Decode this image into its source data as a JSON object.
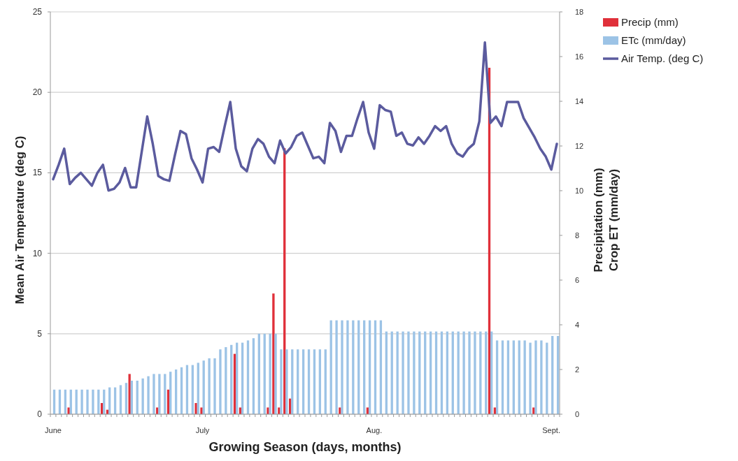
{
  "chart_data": {
    "type": "bar",
    "xlabel": "Growing Season (days, months)",
    "ylabel": "Mean Air Temperature (deg C)",
    "y2label": "Precipitation (mm)\nCrop ET (mm/day)",
    "categories": [
      "June",
      null,
      null,
      null,
      null,
      null,
      null,
      null,
      null,
      null,
      null,
      null,
      null,
      null,
      null,
      null,
      null,
      null,
      null,
      null,
      null,
      null,
      null,
      null,
      null,
      null,
      null,
      "July",
      null,
      null,
      null,
      null,
      null,
      null,
      null,
      null,
      null,
      null,
      null,
      null,
      null,
      null,
      null,
      null,
      null,
      null,
      null,
      null,
      null,
      null,
      null,
      null,
      null,
      null,
      null,
      null,
      null,
      null,
      "Aug.",
      null,
      null,
      null,
      null,
      null,
      null,
      null,
      null,
      null,
      null,
      null,
      null,
      null,
      null,
      null,
      null,
      null,
      null,
      null,
      null,
      null,
      null,
      null,
      null,
      null,
      null,
      null,
      null,
      null,
      null,
      null,
      "Sept.",
      null
    ],
    "series": [
      {
        "name": "Precip (mm)",
        "axis": "y2",
        "color": "#e0303a",
        "values": [
          null,
          null,
          null,
          0.3,
          null,
          null,
          null,
          null,
          null,
          0.5,
          0.2,
          null,
          null,
          null,
          1.8,
          null,
          null,
          null,
          null,
          0.3,
          null,
          1.1,
          null,
          null,
          null,
          null,
          0.5,
          0.3,
          null,
          null,
          null,
          null,
          null,
          2.7,
          0.3,
          null,
          null,
          null,
          null,
          0.3,
          5.4,
          0.3,
          11.9,
          0.7,
          null,
          null,
          null,
          null,
          null,
          null,
          null,
          null,
          0.3,
          null,
          null,
          null,
          null,
          0.3,
          null,
          null,
          null,
          null,
          null,
          null,
          null,
          null,
          null,
          null,
          null,
          null,
          null,
          null,
          null,
          null,
          null,
          null,
          null,
          null,
          null,
          15.5,
          0.3,
          null,
          null,
          null,
          null,
          null,
          null,
          0.3,
          null,
          null,
          null,
          null
        ]
      },
      {
        "name": "ETc (mm/day)",
        "axis": "y2",
        "color": "#9cc3e6",
        "values": [
          1.1,
          1.1,
          1.1,
          1.1,
          1.1,
          1.1,
          1.1,
          1.1,
          1.1,
          1.1,
          1.2,
          1.2,
          1.3,
          1.4,
          1.5,
          1.5,
          1.6,
          1.7,
          1.8,
          1.8,
          1.8,
          1.9,
          2.0,
          2.1,
          2.2,
          2.2,
          2.3,
          2.4,
          2.5,
          2.5,
          2.9,
          3.0,
          3.1,
          3.2,
          3.2,
          3.3,
          3.4,
          3.6,
          3.6,
          3.6,
          3.6,
          2.9,
          2.9,
          2.9,
          2.9,
          2.9,
          2.9,
          2.9,
          2.9,
          2.9,
          4.2,
          4.2,
          4.2,
          4.2,
          4.2,
          4.2,
          4.2,
          4.2,
          4.2,
          4.2,
          3.7,
          3.7,
          3.7,
          3.7,
          3.7,
          3.7,
          3.7,
          3.7,
          3.7,
          3.7,
          3.7,
          3.7,
          3.7,
          3.7,
          3.7,
          3.7,
          3.7,
          3.7,
          3.7,
          3.7,
          3.3,
          3.3,
          3.3,
          3.3,
          3.3,
          3.3,
          3.2,
          3.3,
          3.3,
          3.2,
          3.5,
          3.5
        ]
      },
      {
        "name": "Air Temp. (deg C)",
        "type": "line",
        "color": "#5b5b9e",
        "values": [
          14.6,
          15.5,
          16.5,
          14.3,
          14.7,
          15.0,
          14.6,
          14.2,
          15.0,
          15.5,
          13.9,
          14.0,
          14.4,
          15.3,
          14.1,
          14.1,
          16.3,
          18.5,
          16.8,
          14.8,
          14.6,
          14.5,
          16.1,
          17.6,
          17.4,
          15.9,
          15.2,
          14.4,
          16.5,
          16.6,
          16.3,
          17.9,
          19.4,
          16.5,
          15.4,
          15.1,
          16.5,
          17.1,
          16.8,
          16.0,
          15.6,
          17.0,
          16.2,
          16.6,
          17.3,
          17.5,
          16.7,
          15.9,
          16.0,
          15.6,
          18.1,
          17.6,
          16.3,
          17.3,
          17.3,
          18.4,
          19.4,
          17.5,
          16.5,
          19.2,
          18.9,
          18.8,
          17.3,
          17.5,
          16.8,
          16.7,
          17.2,
          16.8,
          17.3,
          17.9,
          17.6,
          17.9,
          16.8,
          16.2,
          16.0,
          16.5,
          16.8,
          18.2,
          23.1,
          18.1,
          18.5,
          17.9,
          19.4,
          19.4,
          19.4,
          18.4,
          17.8,
          17.2,
          16.5,
          16.0,
          15.2,
          16.8
        ]
      }
    ],
    "ylim": [
      0,
      25
    ],
    "yticks": [
      0,
      5,
      10,
      15,
      20,
      25
    ],
    "y2lim": [
      0,
      18
    ],
    "y2ticks": [
      0,
      2,
      4,
      6,
      8,
      10,
      12,
      14,
      16,
      18
    ],
    "grid": "y",
    "legend": "top right",
    "marker": "none",
    "line_style": "solid"
  }
}
